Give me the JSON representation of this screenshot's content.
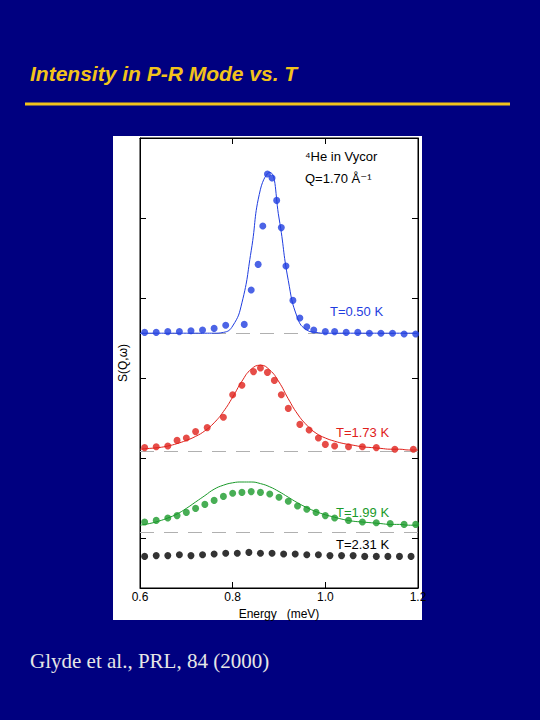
{
  "chart_data": {
    "type": "scatter",
    "title": "Intensity in P-R Mode vs. T",
    "x_label": "Energy   (meV)",
    "y_label": "S(Q,ω)",
    "annotations": [
      "⁴He in Vycor",
      "Q=1.70 Å⁻¹"
    ],
    "caption": "Glyde et al., PRL, 84 (2000)",
    "xlim": [
      0.6,
      1.2
    ],
    "xticks": [
      0.6,
      0.8,
      {
        "value": 1.0,
        "label": "1.0"
      },
      1.2
    ],
    "ylim": [
      0.375,
      6
    ],
    "yticks": [
      1,
      2,
      3,
      4,
      5,
      6
    ],
    "tick_labels": "x",
    "grid": false,
    "fit_x": [
      0.6,
      0.62,
      0.64,
      0.66,
      0.68,
      0.7,
      0.72,
      0.74,
      0.76,
      0.78,
      0.8,
      0.82,
      0.84,
      0.86,
      0.88,
      0.9,
      0.92,
      0.94,
      0.96,
      0.98,
      1.0,
      1.02,
      1.04,
      1.06,
      1.08,
      1.1,
      1.12,
      1.14,
      1.16,
      1.18,
      1.2
    ],
    "series": [
      {
        "name": "T=0.50 K",
        "color": "#1f3de0",
        "marker": "circle",
        "baseline": 3.56,
        "x": [
          0.61,
          0.635,
          0.66,
          0.685,
          0.71,
          0.735,
          0.76,
          0.785,
          0.825,
          0.84,
          0.855,
          0.865,
          0.875,
          0.885,
          0.895,
          0.905,
          0.915,
          0.93,
          0.945,
          0.96,
          0.975,
          1.0,
          1.02,
          1.045,
          1.07,
          1.095,
          1.12,
          1.145,
          1.17,
          1.195
        ],
        "values": [
          3.57,
          3.57,
          3.58,
          3.58,
          3.59,
          3.6,
          3.62,
          3.66,
          3.67,
          4.1,
          4.42,
          4.9,
          5.55,
          5.5,
          5.22,
          4.88,
          4.4,
          3.97,
          3.75,
          3.64,
          3.6,
          3.58,
          3.58,
          3.57,
          3.57,
          3.56,
          3.56,
          3.56,
          3.55,
          3.55
        ],
        "fit": [
          3.56,
          3.56,
          3.56,
          3.56,
          3.56,
          3.56,
          3.56,
          3.56,
          3.56,
          3.57,
          3.65,
          3.94,
          4.59,
          5.36,
          5.57,
          5.0,
          4.22,
          3.75,
          3.6,
          3.57,
          3.56,
          3.56,
          3.56,
          3.56,
          3.56,
          3.56,
          3.56,
          3.56,
          3.56,
          3.56,
          3.56
        ]
      },
      {
        "name": "T=1.73 K",
        "color": "#e0201a",
        "marker": "circle",
        "baseline": 2.075,
        "x": [
          0.61,
          0.635,
          0.66,
          0.68,
          0.7,
          0.72,
          0.745,
          0.78,
          0.8,
          0.82,
          0.845,
          0.86,
          0.875,
          0.89,
          0.905,
          0.92,
          0.945,
          0.965,
          0.985,
          1.0,
          1.02,
          1.05,
          1.08,
          1.11,
          1.15,
          1.19
        ],
        "values": [
          2.13,
          2.14,
          2.15,
          2.22,
          2.25,
          2.33,
          2.38,
          2.51,
          2.79,
          2.91,
          3.08,
          3.125,
          3.07,
          2.97,
          2.79,
          2.62,
          2.42,
          2.35,
          2.25,
          2.17,
          2.15,
          2.14,
          2.14,
          2.13,
          2.11,
          2.11
        ],
        "fit": [
          2.11,
          2.12,
          2.13,
          2.15,
          2.18,
          2.22,
          2.27,
          2.34,
          2.44,
          2.58,
          2.76,
          2.96,
          3.11,
          3.16,
          3.1,
          2.95,
          2.74,
          2.55,
          2.41,
          2.31,
          2.25,
          2.21,
          2.18,
          2.16,
          2.14,
          2.13,
          2.12,
          2.11,
          2.11,
          2.1,
          2.1
        ]
      },
      {
        "name": "T=1.99 K",
        "color": "#1a9a2a",
        "marker": "circle",
        "baseline": 1.075,
        "x": [
          0.61,
          0.635,
          0.66,
          0.68,
          0.7,
          0.72,
          0.74,
          0.76,
          0.78,
          0.8,
          0.82,
          0.84,
          0.86,
          0.88,
          0.9,
          0.92,
          0.94,
          0.96,
          0.98,
          1.0,
          1.02,
          1.05,
          1.08,
          1.11,
          1.14,
          1.17,
          1.195
        ],
        "values": [
          1.2,
          1.22,
          1.25,
          1.28,
          1.32,
          1.37,
          1.42,
          1.47,
          1.52,
          1.56,
          1.57,
          1.58,
          1.57,
          1.55,
          1.51,
          1.46,
          1.4,
          1.36,
          1.32,
          1.28,
          1.25,
          1.22,
          1.2,
          1.19,
          1.18,
          1.17,
          1.17
        ],
        "fit": [
          1.16,
          1.18,
          1.21,
          1.25,
          1.3,
          1.37,
          1.45,
          1.53,
          1.61,
          1.66,
          1.69,
          1.7,
          1.7,
          1.68,
          1.64,
          1.58,
          1.51,
          1.44,
          1.38,
          1.33,
          1.29,
          1.26,
          1.23,
          1.21,
          1.2,
          1.19,
          1.18,
          1.17,
          1.17,
          1.16,
          1.16
        ]
      },
      {
        "name": "T=2.31 K",
        "color": "#000000",
        "marker": "circle",
        "x": [
          0.61,
          0.635,
          0.66,
          0.685,
          0.71,
          0.735,
          0.76,
          0.785,
          0.81,
          0.835,
          0.86,
          0.885,
          0.91,
          0.935,
          0.96,
          0.985,
          1.01,
          1.035,
          1.06,
          1.085,
          1.11,
          1.135,
          1.16,
          1.185
        ],
        "values": [
          0.77,
          0.78,
          0.78,
          0.79,
          0.78,
          0.79,
          0.8,
          0.81,
          0.81,
          0.82,
          0.81,
          0.81,
          0.8,
          0.8,
          0.79,
          0.79,
          0.78,
          0.78,
          0.78,
          0.77,
          0.77,
          0.77,
          0.77,
          0.77
        ]
      }
    ]
  }
}
